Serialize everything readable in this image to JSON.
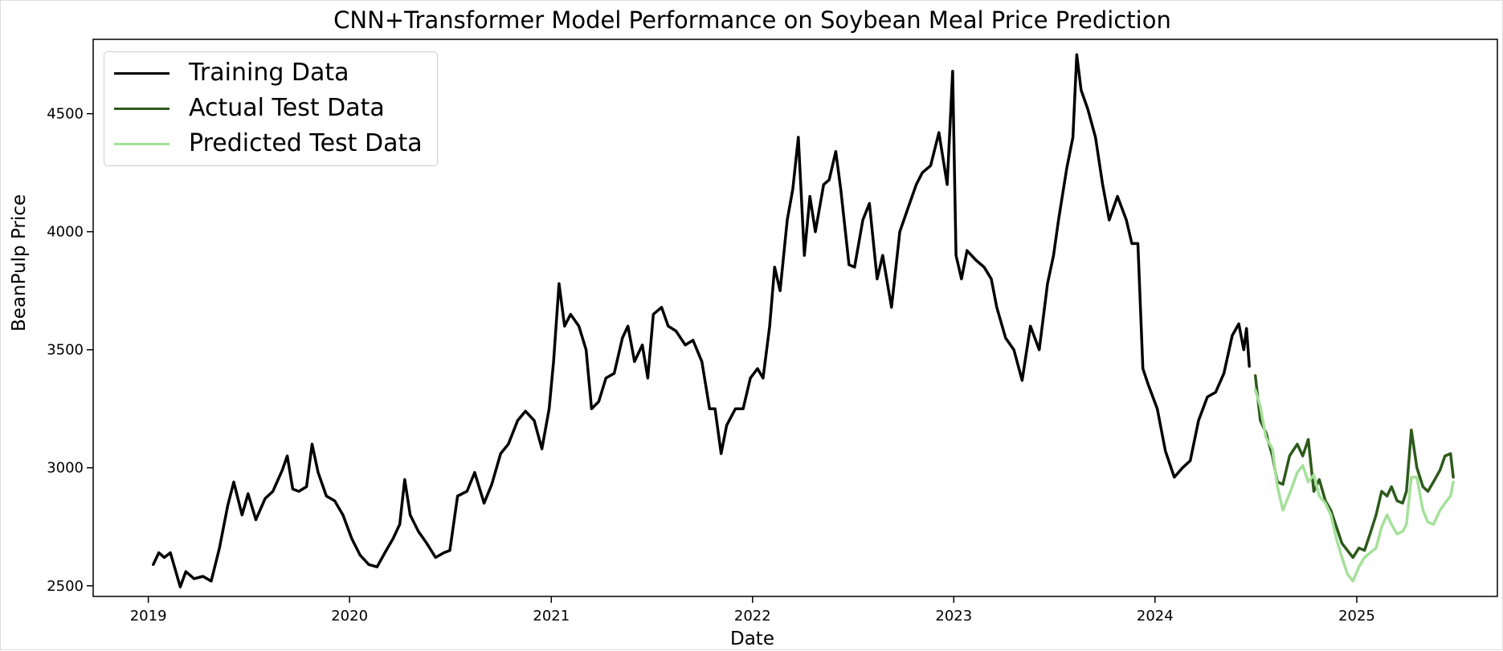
{
  "chart_data": {
    "type": "line",
    "title": "CNN+Transformer Model Performance on Soybean Meal Price Prediction",
    "xlabel": "Date",
    "ylabel": "BeanPulp Price",
    "xlim": [
      "2018-09-23",
      "2025-09-13"
    ],
    "ylim": [
      2455,
      4815
    ],
    "x_ticks": [
      "2019",
      "2020",
      "2021",
      "2022",
      "2023",
      "2024",
      "2025"
    ],
    "y_ticks": [
      2500,
      3000,
      3500,
      4000,
      4500
    ],
    "grid": false,
    "legend_position": "upper left",
    "series": [
      {
        "name": "Training Data",
        "color": "#000000",
        "points": [
          [
            "2019-01-10",
            2590
          ],
          [
            "2019-01-20",
            2640
          ],
          [
            "2019-01-30",
            2620
          ],
          [
            "2019-02-10",
            2640
          ],
          [
            "2019-02-20",
            2560
          ],
          [
            "2019-02-28",
            2495
          ],
          [
            "2019-03-10",
            2560
          ],
          [
            "2019-03-25",
            2530
          ],
          [
            "2019-04-10",
            2540
          ],
          [
            "2019-04-25",
            2520
          ],
          [
            "2019-05-10",
            2660
          ],
          [
            "2019-05-25",
            2840
          ],
          [
            "2019-06-05",
            2940
          ],
          [
            "2019-06-20",
            2800
          ],
          [
            "2019-07-01",
            2890
          ],
          [
            "2019-07-15",
            2780
          ],
          [
            "2019-08-01",
            2870
          ],
          [
            "2019-08-15",
            2900
          ],
          [
            "2019-09-01",
            2990
          ],
          [
            "2019-09-10",
            3050
          ],
          [
            "2019-09-20",
            2910
          ],
          [
            "2019-10-01",
            2900
          ],
          [
            "2019-10-15",
            2920
          ],
          [
            "2019-10-25",
            3100
          ],
          [
            "2019-11-05",
            2980
          ],
          [
            "2019-11-20",
            2880
          ],
          [
            "2019-12-05",
            2860
          ],
          [
            "2019-12-20",
            2800
          ],
          [
            "2020-01-05",
            2700
          ],
          [
            "2020-01-20",
            2630
          ],
          [
            "2020-02-05",
            2590
          ],
          [
            "2020-02-20",
            2580
          ],
          [
            "2020-03-05",
            2640
          ],
          [
            "2020-03-20",
            2700
          ],
          [
            "2020-04-01",
            2760
          ],
          [
            "2020-04-10",
            2950
          ],
          [
            "2020-04-20",
            2800
          ],
          [
            "2020-05-05",
            2730
          ],
          [
            "2020-05-20",
            2680
          ],
          [
            "2020-06-05",
            2620
          ],
          [
            "2020-06-20",
            2640
          ],
          [
            "2020-07-01",
            2650
          ],
          [
            "2020-07-15",
            2880
          ],
          [
            "2020-08-01",
            2900
          ],
          [
            "2020-08-15",
            2980
          ],
          [
            "2020-09-01",
            2850
          ],
          [
            "2020-09-15",
            2930
          ],
          [
            "2020-10-01",
            3060
          ],
          [
            "2020-10-15",
            3100
          ],
          [
            "2020-11-01",
            3200
          ],
          [
            "2020-11-15",
            3240
          ],
          [
            "2020-12-01",
            3200
          ],
          [
            "2020-12-15",
            3080
          ],
          [
            "2020-12-28",
            3250
          ],
          [
            "2021-01-05",
            3450
          ],
          [
            "2021-01-15",
            3780
          ],
          [
            "2021-01-25",
            3600
          ],
          [
            "2021-02-05",
            3650
          ],
          [
            "2021-02-20",
            3600
          ],
          [
            "2021-03-05",
            3500
          ],
          [
            "2021-03-15",
            3250
          ],
          [
            "2021-03-28",
            3280
          ],
          [
            "2021-04-10",
            3380
          ],
          [
            "2021-04-25",
            3400
          ],
          [
            "2021-05-10",
            3550
          ],
          [
            "2021-05-20",
            3600
          ],
          [
            "2021-06-01",
            3450
          ],
          [
            "2021-06-15",
            3520
          ],
          [
            "2021-06-25",
            3380
          ],
          [
            "2021-07-05",
            3650
          ],
          [
            "2021-07-20",
            3680
          ],
          [
            "2021-08-01",
            3600
          ],
          [
            "2021-08-15",
            3580
          ],
          [
            "2021-09-01",
            3520
          ],
          [
            "2021-09-15",
            3540
          ],
          [
            "2021-10-01",
            3450
          ],
          [
            "2021-10-15",
            3250
          ],
          [
            "2021-10-25",
            3250
          ],
          [
            "2021-11-05",
            3060
          ],
          [
            "2021-11-15",
            3180
          ],
          [
            "2021-12-01",
            3250
          ],
          [
            "2021-12-15",
            3250
          ],
          [
            "2021-12-28",
            3380
          ],
          [
            "2022-01-10",
            3420
          ],
          [
            "2022-01-20",
            3380
          ],
          [
            "2022-02-01",
            3600
          ],
          [
            "2022-02-10",
            3850
          ],
          [
            "2022-02-20",
            3750
          ],
          [
            "2022-03-05",
            4050
          ],
          [
            "2022-03-15",
            4180
          ],
          [
            "2022-03-25",
            4400
          ],
          [
            "2022-04-05",
            3900
          ],
          [
            "2022-04-15",
            4150
          ],
          [
            "2022-04-25",
            4000
          ],
          [
            "2022-05-10",
            4200
          ],
          [
            "2022-05-20",
            4220
          ],
          [
            "2022-06-01",
            4340
          ],
          [
            "2022-06-10",
            4180
          ],
          [
            "2022-06-25",
            3860
          ],
          [
            "2022-07-05",
            3850
          ],
          [
            "2022-07-20",
            4050
          ],
          [
            "2022-08-01",
            4120
          ],
          [
            "2022-08-15",
            3800
          ],
          [
            "2022-08-25",
            3900
          ],
          [
            "2022-09-10",
            3680
          ],
          [
            "2022-09-25",
            4000
          ],
          [
            "2022-10-10",
            4100
          ],
          [
            "2022-10-25",
            4200
          ],
          [
            "2022-11-05",
            4250
          ],
          [
            "2022-11-20",
            4280
          ],
          [
            "2022-12-05",
            4420
          ],
          [
            "2022-12-20",
            4200
          ],
          [
            "2022-12-30",
            4680
          ],
          [
            "2023-01-05",
            3900
          ],
          [
            "2023-01-15",
            3800
          ],
          [
            "2023-01-25",
            3920
          ],
          [
            "2023-02-10",
            3880
          ],
          [
            "2023-02-25",
            3850
          ],
          [
            "2023-03-10",
            3800
          ],
          [
            "2023-03-20",
            3680
          ],
          [
            "2023-04-05",
            3550
          ],
          [
            "2023-04-20",
            3500
          ],
          [
            "2023-05-05",
            3370
          ],
          [
            "2023-05-20",
            3600
          ],
          [
            "2023-06-05",
            3500
          ],
          [
            "2023-06-20",
            3780
          ],
          [
            "2023-07-01",
            3900
          ],
          [
            "2023-07-10",
            4050
          ],
          [
            "2023-07-25",
            4270
          ],
          [
            "2023-08-05",
            4400
          ],
          [
            "2023-08-12",
            4750
          ],
          [
            "2023-08-20",
            4600
          ],
          [
            "2023-09-01",
            4520
          ],
          [
            "2023-09-15",
            4400
          ],
          [
            "2023-09-28",
            4200
          ],
          [
            "2023-10-10",
            4050
          ],
          [
            "2023-10-25",
            4150
          ],
          [
            "2023-11-10",
            4050
          ],
          [
            "2023-11-20",
            3950
          ],
          [
            "2023-12-01",
            3950
          ],
          [
            "2023-12-10",
            3420
          ],
          [
            "2023-12-20",
            3350
          ],
          [
            "2024-01-05",
            3250
          ],
          [
            "2024-01-20",
            3070
          ],
          [
            "2024-02-05",
            2960
          ],
          [
            "2024-02-20",
            3000
          ],
          [
            "2024-03-05",
            3030
          ],
          [
            "2024-03-20",
            3200
          ],
          [
            "2024-04-05",
            3300
          ],
          [
            "2024-04-20",
            3320
          ],
          [
            "2024-05-05",
            3400
          ],
          [
            "2024-05-20",
            3560
          ],
          [
            "2024-06-01",
            3610
          ],
          [
            "2024-06-10",
            3500
          ],
          [
            "2024-06-15",
            3590
          ],
          [
            "2024-06-20",
            3430
          ]
        ]
      },
      {
        "name": "Actual Test Data",
        "color": "#2d5a1b",
        "points": [
          [
            "2024-07-01",
            3390
          ],
          [
            "2024-07-10",
            3200
          ],
          [
            "2024-07-20",
            3150
          ],
          [
            "2024-08-01",
            3050
          ],
          [
            "2024-08-10",
            2940
          ],
          [
            "2024-08-20",
            2930
          ],
          [
            "2024-09-01",
            3050
          ],
          [
            "2024-09-15",
            3100
          ],
          [
            "2024-09-25",
            3050
          ],
          [
            "2024-10-05",
            3120
          ],
          [
            "2024-10-15",
            2900
          ],
          [
            "2024-10-25",
            2950
          ],
          [
            "2024-11-05",
            2860
          ],
          [
            "2024-11-15",
            2820
          ],
          [
            "2024-11-25",
            2750
          ],
          [
            "2024-12-05",
            2680
          ],
          [
            "2024-12-15",
            2650
          ],
          [
            "2024-12-25",
            2620
          ],
          [
            "2025-01-05",
            2660
          ],
          [
            "2025-01-15",
            2650
          ],
          [
            "2025-01-25",
            2720
          ],
          [
            "2025-02-05",
            2800
          ],
          [
            "2025-02-15",
            2900
          ],
          [
            "2025-02-25",
            2880
          ],
          [
            "2025-03-05",
            2920
          ],
          [
            "2025-03-15",
            2860
          ],
          [
            "2025-03-25",
            2850
          ],
          [
            "2025-04-01",
            2900
          ],
          [
            "2025-04-10",
            3160
          ],
          [
            "2025-04-20",
            3000
          ],
          [
            "2025-05-01",
            2920
          ],
          [
            "2025-05-10",
            2900
          ],
          [
            "2025-05-20",
            2940
          ],
          [
            "2025-06-01",
            2990
          ],
          [
            "2025-06-10",
            3050
          ],
          [
            "2025-06-20",
            3060
          ],
          [
            "2025-06-25",
            2960
          ]
        ]
      },
      {
        "name": "Predicted Test Data",
        "color": "#a5e09a",
        "points": [
          [
            "2024-07-01",
            3330
          ],
          [
            "2024-07-10",
            3260
          ],
          [
            "2024-07-20",
            3130
          ],
          [
            "2024-08-01",
            3080
          ],
          [
            "2024-08-10",
            2920
          ],
          [
            "2024-08-20",
            2820
          ],
          [
            "2024-09-01",
            2890
          ],
          [
            "2024-09-15",
            2980
          ],
          [
            "2024-09-25",
            3010
          ],
          [
            "2024-10-05",
            2940
          ],
          [
            "2024-10-15",
            2970
          ],
          [
            "2024-10-25",
            2880
          ],
          [
            "2024-11-05",
            2850
          ],
          [
            "2024-11-15",
            2800
          ],
          [
            "2024-11-25",
            2700
          ],
          [
            "2024-12-05",
            2620
          ],
          [
            "2024-12-15",
            2550
          ],
          [
            "2024-12-25",
            2520
          ],
          [
            "2025-01-05",
            2580
          ],
          [
            "2025-01-15",
            2620
          ],
          [
            "2025-01-25",
            2640
          ],
          [
            "2025-02-05",
            2660
          ],
          [
            "2025-02-15",
            2750
          ],
          [
            "2025-02-25",
            2800
          ],
          [
            "2025-03-05",
            2760
          ],
          [
            "2025-03-15",
            2720
          ],
          [
            "2025-03-25",
            2730
          ],
          [
            "2025-04-01",
            2760
          ],
          [
            "2025-04-10",
            2960
          ],
          [
            "2025-04-20",
            2960
          ],
          [
            "2025-05-01",
            2820
          ],
          [
            "2025-05-10",
            2770
          ],
          [
            "2025-05-20",
            2760
          ],
          [
            "2025-06-01",
            2820
          ],
          [
            "2025-06-10",
            2850
          ],
          [
            "2025-06-20",
            2880
          ],
          [
            "2025-06-25",
            2940
          ]
        ]
      }
    ]
  }
}
